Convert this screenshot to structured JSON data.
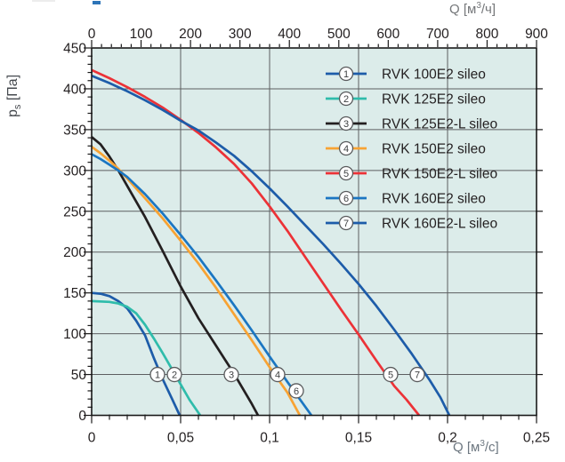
{
  "figure": {
    "kind": "fan performance curves",
    "background_color": "#ffffff",
    "clipped_title_fragment_color": "#2d74b8"
  },
  "chart_data": {
    "type": "line",
    "title": "",
    "plot": {
      "bg_color": "#dcecea",
      "grid_color": "#5c5e60",
      "frame_color": "#1a1a1a",
      "tick_color": "#1a1a1a",
      "tick_label_color": "#231f20",
      "marker_circle_fill": "#ffffff",
      "marker_circle_stroke": "#595a5c",
      "marker_number_color": "#3e4042",
      "legend_text_color": "#231f20",
      "grid": true,
      "legend_position": "top-right-inside"
    },
    "axes": {
      "top": {
        "unit_pre": "Q [м",
        "unit_sup": "3",
        "unit_post": "/ч]",
        "range": [
          0,
          900
        ],
        "major_step": 100,
        "minor_step": 20,
        "tick_labels": [
          "0",
          "100",
          "200",
          "300",
          "400",
          "500",
          "600",
          "700",
          "800",
          "900"
        ]
      },
      "bottom": {
        "unit_pre": "Q [м",
        "unit_sup": "3",
        "unit_post": "/c]",
        "range": [
          0,
          0.25
        ],
        "major_step": 0.05,
        "minor_step": 0.01,
        "tick_values": [
          0,
          0.05,
          0.1,
          0.15,
          0.2,
          0.25
        ],
        "tick_labels": [
          "0",
          "0,05",
          "0,1",
          "0,15",
          "0,2",
          "0,25"
        ]
      },
      "left": {
        "label_main": "p",
        "label_sub": "s",
        "label_unit": " [Па]",
        "range": [
          0,
          450
        ],
        "major_step": 50,
        "minor_step": 10,
        "tick_labels": [
          "0",
          "50",
          "100",
          "150",
          "200",
          "250",
          "300",
          "350",
          "400",
          "450"
        ]
      },
      "right": {
        "major_step": 50,
        "labels": false
      }
    },
    "series": [
      {
        "id": "1",
        "label": "RVK 100E2 sileo",
        "color": "#1d5ca9",
        "marker_at": [
          0.037,
          50
        ],
        "points": [
          [
            0,
            150
          ],
          [
            0.005,
            149
          ],
          [
            0.01,
            146
          ],
          [
            0.015,
            140
          ],
          [
            0.02,
            131
          ],
          [
            0.025,
            116
          ],
          [
            0.03,
            98
          ],
          [
            0.035,
            70
          ],
          [
            0.04,
            44
          ],
          [
            0.045,
            21
          ],
          [
            0.0495,
            0
          ]
        ]
      },
      {
        "id": "2",
        "label": "RVK 125E2 sileo",
        "color": "#2fbcab",
        "marker_at": [
          0.0465,
          50
        ],
        "points": [
          [
            0,
            140
          ],
          [
            0.01,
            139
          ],
          [
            0.015,
            137
          ],
          [
            0.02,
            133
          ],
          [
            0.025,
            125
          ],
          [
            0.03,
            111
          ],
          [
            0.035,
            94
          ],
          [
            0.04,
            76
          ],
          [
            0.045,
            57
          ],
          [
            0.05,
            38
          ],
          [
            0.055,
            19
          ],
          [
            0.061,
            0
          ]
        ]
      },
      {
        "id": "3",
        "label": "RVK 125E2-L sileo",
        "color": "#231f20",
        "marker_at": [
          0.0785,
          50
        ],
        "points": [
          [
            0,
            341
          ],
          [
            0.005,
            332
          ],
          [
            0.01,
            317
          ],
          [
            0.015,
            300
          ],
          [
            0.02,
            281
          ],
          [
            0.03,
            243
          ],
          [
            0.04,
            201
          ],
          [
            0.05,
            158
          ],
          [
            0.06,
            119
          ],
          [
            0.07,
            85
          ],
          [
            0.08,
            51
          ],
          [
            0.09,
            14
          ],
          [
            0.0935,
            0
          ]
        ]
      },
      {
        "id": "4",
        "label": "RVK 150E2 sileo",
        "color": "#f8a333",
        "marker_at": [
          0.1045,
          50
        ],
        "points": [
          [
            0,
            329
          ],
          [
            0.005,
            321
          ],
          [
            0.01,
            312
          ],
          [
            0.015,
            302
          ],
          [
            0.02,
            290
          ],
          [
            0.03,
            266
          ],
          [
            0.04,
            241
          ],
          [
            0.05,
            214
          ],
          [
            0.06,
            186
          ],
          [
            0.07,
            156
          ],
          [
            0.08,
            124
          ],
          [
            0.09,
            92
          ],
          [
            0.1,
            59
          ],
          [
            0.11,
            28
          ],
          [
            0.117,
            0
          ]
        ]
      },
      {
        "id": "5",
        "label": "RVK 150E2-L sileo",
        "color": "#ec3237",
        "marker_at": [
          0.168,
          50
        ],
        "points": [
          [
            0,
            423
          ],
          [
            0.01,
            413
          ],
          [
            0.02,
            402
          ],
          [
            0.03,
            390
          ],
          [
            0.04,
            377
          ],
          [
            0.05,
            362
          ],
          [
            0.06,
            346
          ],
          [
            0.07,
            328
          ],
          [
            0.08,
            308
          ],
          [
            0.09,
            284
          ],
          [
            0.1,
            256
          ],
          [
            0.11,
            226
          ],
          [
            0.12,
            194
          ],
          [
            0.13,
            162
          ],
          [
            0.14,
            130
          ],
          [
            0.15,
            99
          ],
          [
            0.16,
            67
          ],
          [
            0.17,
            36
          ],
          [
            0.177,
            19
          ],
          [
            0.184,
            0
          ]
        ]
      },
      {
        "id": "6",
        "label": "RVK 160E2 sileo",
        "color": "#1b76c2",
        "marker_at": [
          0.115,
          30
        ],
        "points": [
          [
            0,
            320
          ],
          [
            0.005,
            314
          ],
          [
            0.01,
            307
          ],
          [
            0.015,
            300
          ],
          [
            0.02,
            292
          ],
          [
            0.03,
            271
          ],
          [
            0.04,
            247
          ],
          [
            0.05,
            221
          ],
          [
            0.06,
            194
          ],
          [
            0.07,
            165
          ],
          [
            0.08,
            135
          ],
          [
            0.09,
            104
          ],
          [
            0.1,
            72
          ],
          [
            0.11,
            41
          ],
          [
            0.1235,
            0
          ]
        ]
      },
      {
        "id": "7",
        "label": "RVK 160E2-L sileo",
        "color": "#1d5ca9",
        "marker_at": [
          0.183,
          50
        ],
        "points": [
          [
            0,
            416
          ],
          [
            0.01,
            407
          ],
          [
            0.02,
            397
          ],
          [
            0.03,
            386
          ],
          [
            0.04,
            374
          ],
          [
            0.05,
            361
          ],
          [
            0.06,
            349
          ],
          [
            0.07,
            334
          ],
          [
            0.08,
            318
          ],
          [
            0.09,
            299
          ],
          [
            0.1,
            278
          ],
          [
            0.11,
            256
          ],
          [
            0.12,
            233
          ],
          [
            0.13,
            210
          ],
          [
            0.14,
            186
          ],
          [
            0.15,
            161
          ],
          [
            0.16,
            134
          ],
          [
            0.17,
            105
          ],
          [
            0.18,
            75
          ],
          [
            0.19,
            43
          ],
          [
            0.196,
            22
          ],
          [
            0.201,
            0
          ]
        ]
      }
    ]
  }
}
